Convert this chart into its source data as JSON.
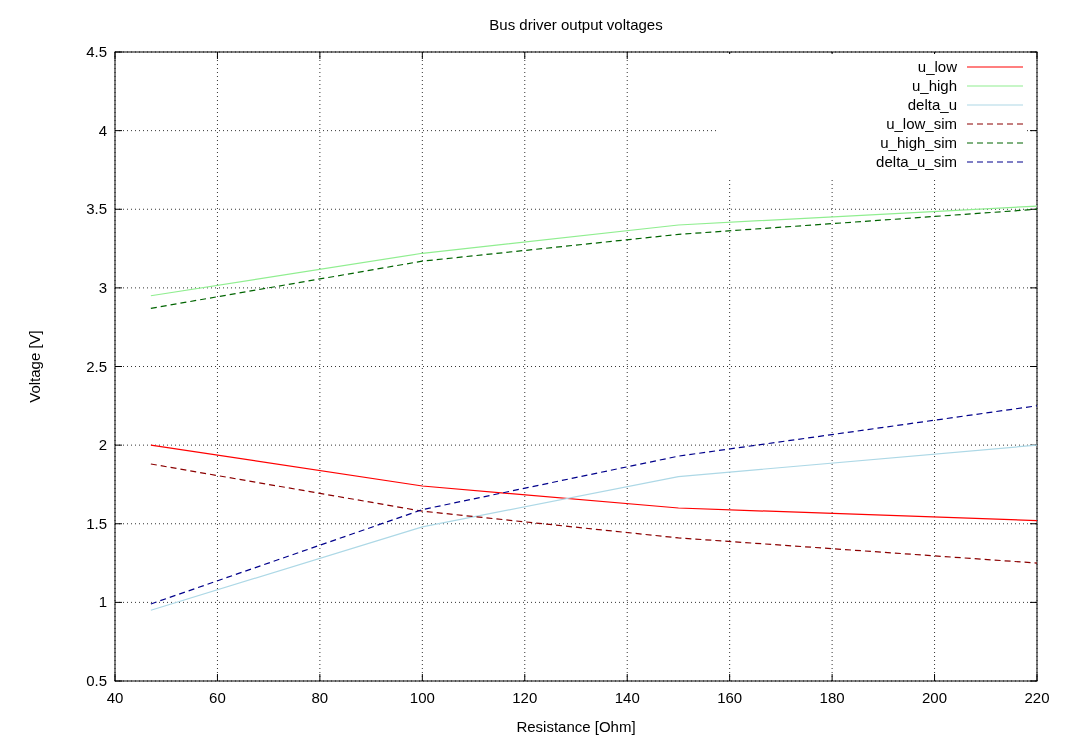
{
  "chart_data": {
    "type": "line",
    "title": "Bus driver output voltages",
    "xlabel": "Resistance [Ohm]",
    "ylabel": "Voltage [V]",
    "x": [
      47,
      100,
      150,
      220
    ],
    "xlim": [
      40,
      220
    ],
    "xticks": [
      40,
      60,
      80,
      100,
      120,
      140,
      160,
      180,
      200,
      220
    ],
    "ylim": [
      0.5,
      4.5
    ],
    "yticks": [
      0.5,
      1,
      1.5,
      2,
      2.5,
      3,
      3.5,
      4,
      4.5
    ],
    "grid": true,
    "legend": "top right",
    "marker": "none",
    "series": [
      {
        "name": "u_low",
        "color": "#ff0000",
        "line_style": "solid",
        "values": [
          2.0,
          1.74,
          1.6,
          1.52
        ]
      },
      {
        "name": "u_high",
        "color": "#90ee90",
        "line_style": "solid",
        "values": [
          2.95,
          3.22,
          3.4,
          3.52
        ]
      },
      {
        "name": "delta_u",
        "color": "#add8e6",
        "line_style": "solid",
        "values": [
          0.95,
          1.48,
          1.8,
          2.0
        ]
      },
      {
        "name": "u_low_sim",
        "color": "#8b0000",
        "line_style": "dashed",
        "values": [
          1.88,
          1.58,
          1.41,
          1.25
        ]
      },
      {
        "name": "u_high_sim",
        "color": "#006400",
        "line_style": "dashed",
        "values": [
          2.87,
          3.17,
          3.34,
          3.5
        ]
      },
      {
        "name": "delta_u_sim",
        "color": "#00008b",
        "line_style": "dashed",
        "values": [
          0.99,
          1.59,
          1.93,
          2.25
        ]
      }
    ]
  }
}
